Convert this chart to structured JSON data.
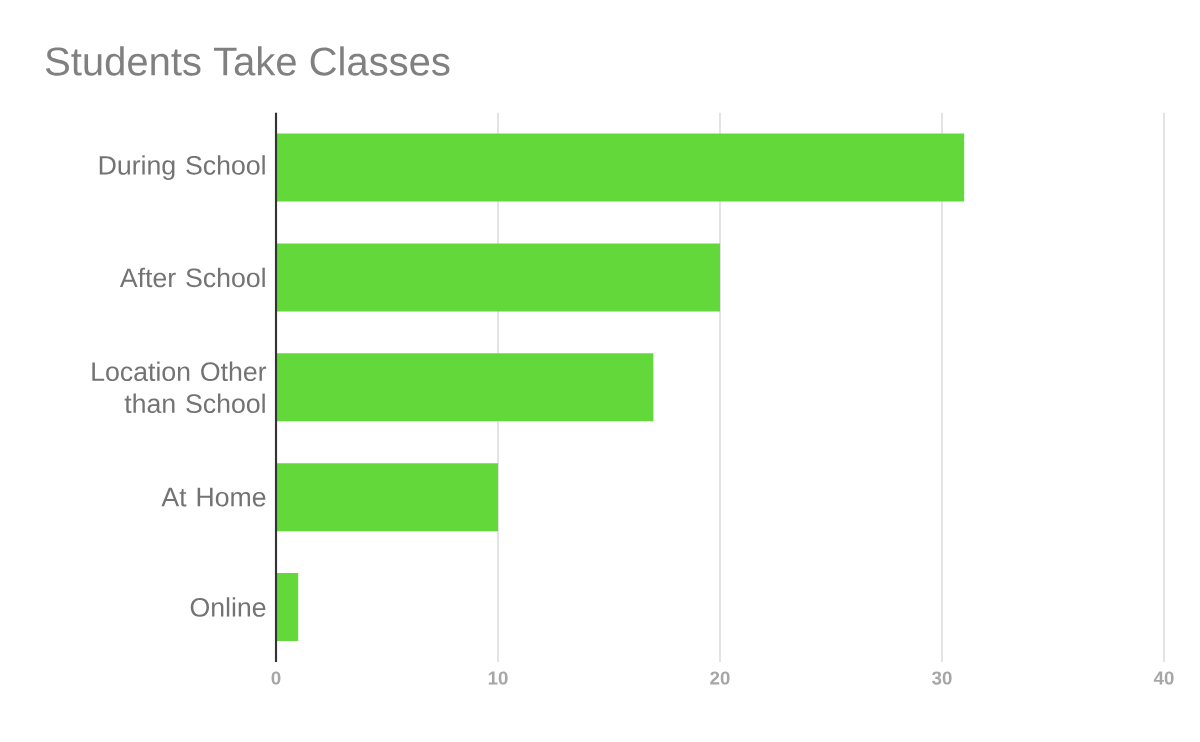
{
  "chart_data": {
    "type": "bar",
    "orientation": "horizontal",
    "title": "Students Take Classes",
    "categories": [
      "During School",
      "After School",
      "Location Other than School",
      "At Home",
      "Online"
    ],
    "values": [
      31,
      20,
      17,
      10,
      1
    ],
    "color": "#62d83a",
    "xlim": [
      0,
      40
    ],
    "xticks": [
      0,
      10,
      20,
      30,
      40
    ],
    "grid": "x"
  }
}
